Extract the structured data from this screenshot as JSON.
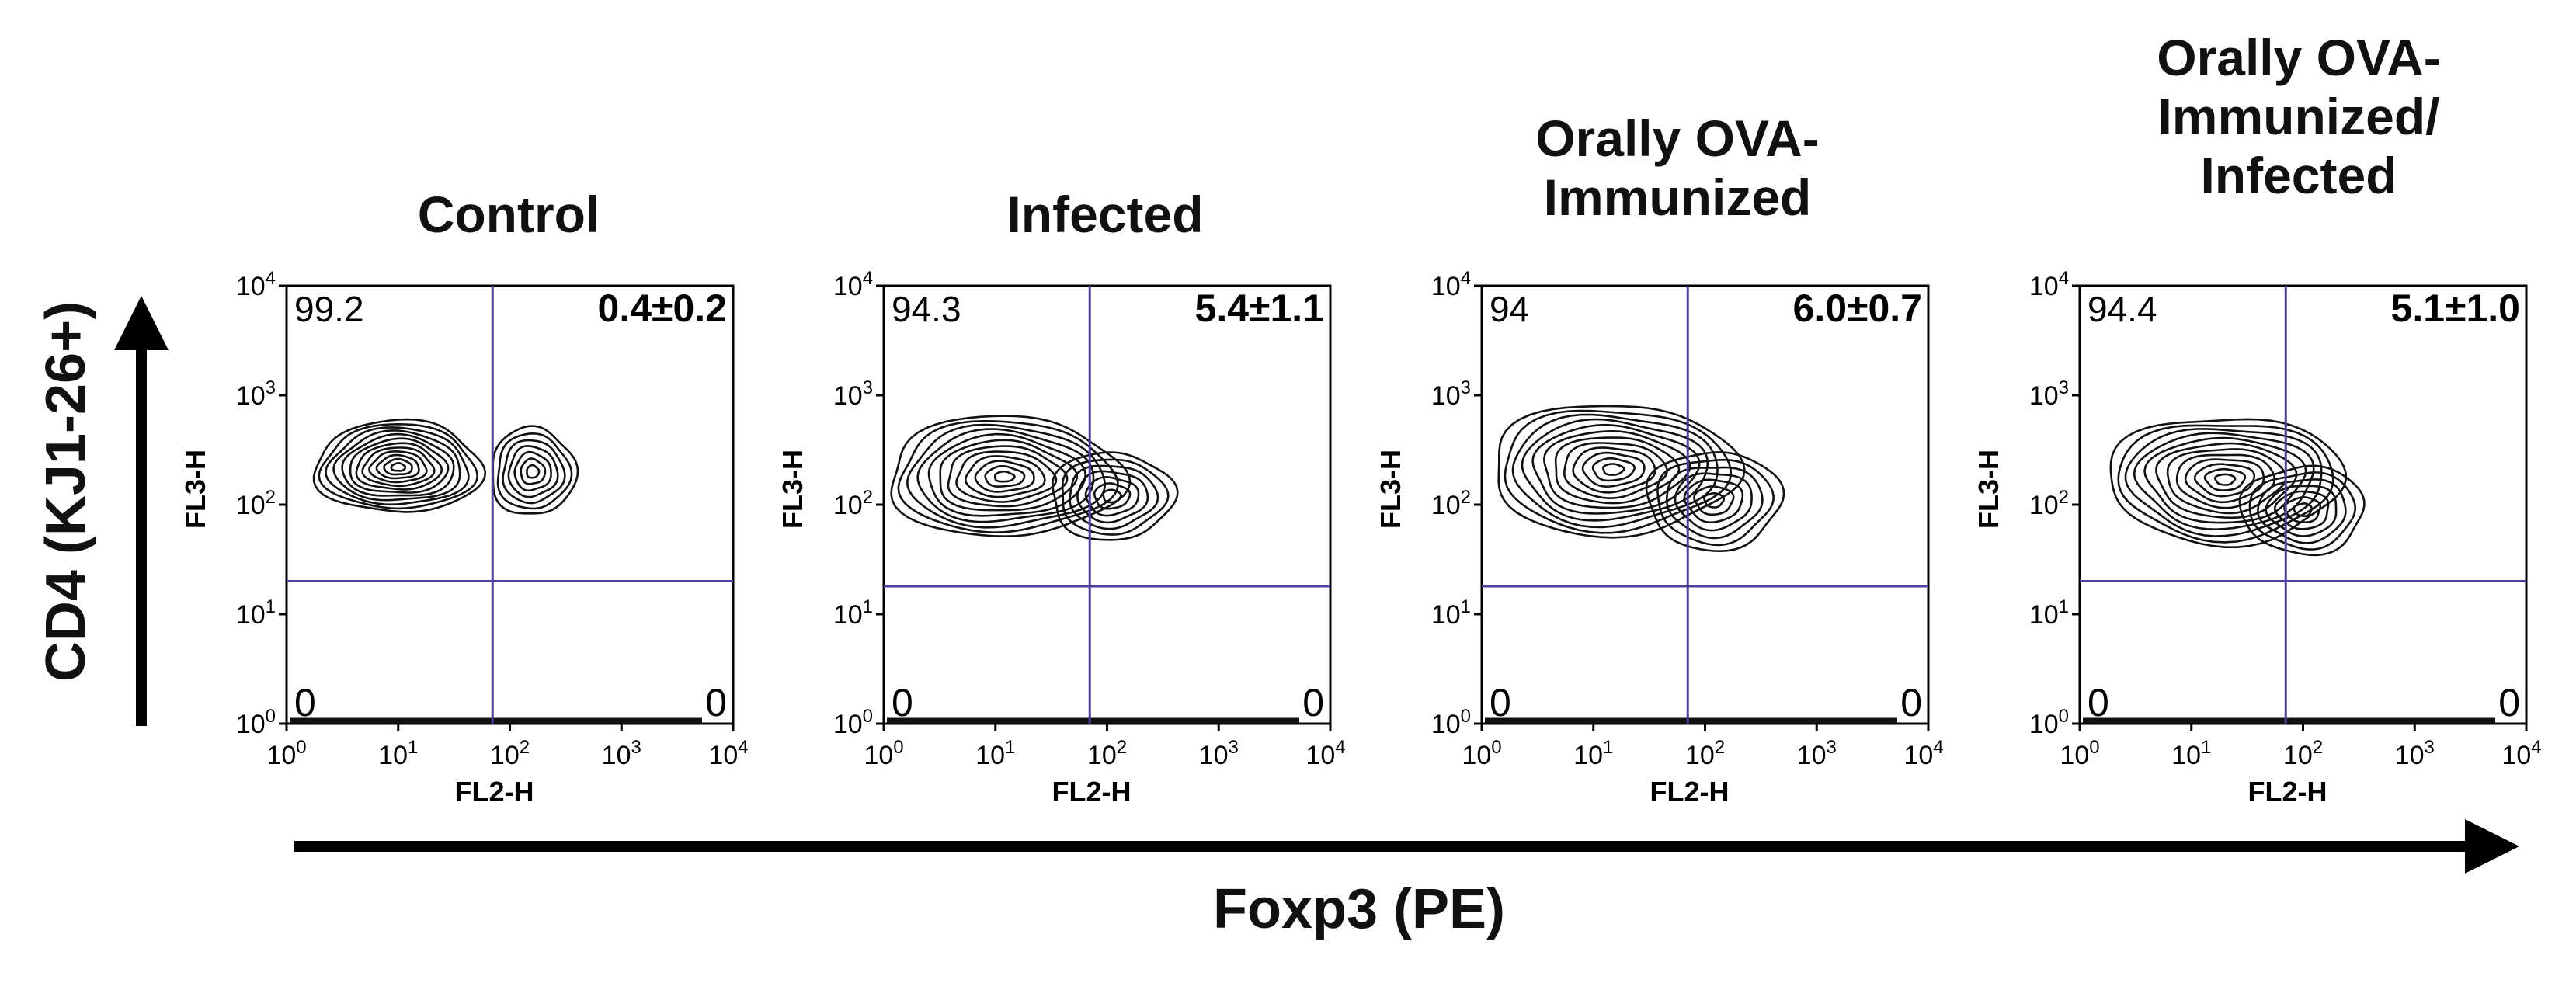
{
  "figure": {
    "y_axis_label": "CD4 (KJ1-26+)",
    "x_axis_label": "Foxp3 (PE)"
  },
  "colors": {
    "gate": "#4b3fa0",
    "contour": "#111111",
    "axis": "#000000"
  },
  "chart_data": [
    {
      "type": "contour",
      "title": "Control",
      "xlabel": "FL2-H",
      "ylabel": "FL3-H",
      "x_scale": "log",
      "y_scale": "log",
      "xlim": [
        1,
        10000
      ],
      "ylim": [
        1,
        10000
      ],
      "x_ticks": [
        "10^0",
        "10^1",
        "10^2",
        "10^3",
        "10^4"
      ],
      "y_ticks": [
        "10^0",
        "10^1",
        "10^2",
        "10^3",
        "10^4"
      ],
      "gate": {
        "x": 70,
        "y": 20
      },
      "quadrants": {
        "upper_left": "99.2",
        "upper_right": "0.4±0.2",
        "lower_left": "0",
        "lower_right": "0"
      },
      "populations": [
        {
          "x": 10,
          "y": 220,
          "spread_x": 0.75,
          "spread_y": 0.42
        },
        {
          "x": 160,
          "y": 200,
          "spread_x": 0.38,
          "spread_y": 0.4
        }
      ]
    },
    {
      "type": "contour",
      "title": "Infected",
      "xlabel": "FL2-H",
      "ylabel": "FL3-H",
      "x_scale": "log",
      "y_scale": "log",
      "xlim": [
        1,
        10000
      ],
      "ylim": [
        1,
        10000
      ],
      "x_ticks": [
        "10^0",
        "10^1",
        "10^2",
        "10^3",
        "10^4"
      ],
      "y_ticks": [
        "10^0",
        "10^1",
        "10^2",
        "10^3",
        "10^4"
      ],
      "gate": {
        "x": 70,
        "y": 18
      },
      "quadrants": {
        "upper_left": "94.3",
        "upper_right": "5.4±1.1",
        "lower_left": "0",
        "lower_right": "0"
      },
      "populations": [
        {
          "x": 12,
          "y": 180,
          "spread_x": 1.05,
          "spread_y": 0.55
        },
        {
          "x": 110,
          "y": 120,
          "spread_x": 0.55,
          "spread_y": 0.4
        }
      ]
    },
    {
      "type": "contour",
      "title": "Orally OVA-Immunized",
      "xlabel": "FL2-H",
      "ylabel": "FL3-H",
      "x_scale": "log",
      "y_scale": "log",
      "xlim": [
        1,
        10000
      ],
      "ylim": [
        1,
        10000
      ],
      "x_ticks": [
        "10^0",
        "10^1",
        "10^2",
        "10^3",
        "10^4"
      ],
      "y_ticks": [
        "10^0",
        "10^1",
        "10^2",
        "10^3",
        "10^4"
      ],
      "gate": {
        "x": 70,
        "y": 18
      },
      "quadrants": {
        "upper_left": "94",
        "upper_right": "6.0±0.7",
        "lower_left": "0",
        "lower_right": "0"
      },
      "populations": [
        {
          "x": 15,
          "y": 210,
          "spread_x": 1.1,
          "spread_y": 0.6
        },
        {
          "x": 120,
          "y": 110,
          "spread_x": 0.6,
          "spread_y": 0.45
        }
      ]
    },
    {
      "type": "contour",
      "title": "Orally OVA-Immunized/ Infected",
      "xlabel": "FL2-H",
      "ylabel": "FL3-H",
      "x_scale": "log",
      "y_scale": "log",
      "xlim": [
        1,
        10000
      ],
      "ylim": [
        1,
        10000
      ],
      "x_ticks": [
        "10^0",
        "10^1",
        "10^2",
        "10^3",
        "10^4"
      ],
      "y_ticks": [
        "10^0",
        "10^1",
        "10^2",
        "10^3",
        "10^4"
      ],
      "gate": {
        "x": 70,
        "y": 20
      },
      "quadrants": {
        "upper_left": "94.4",
        "upper_right": "5.1±1.0",
        "lower_left": "0",
        "lower_right": "0"
      },
      "populations": [
        {
          "x": 20,
          "y": 170,
          "spread_x": 1.05,
          "spread_y": 0.58
        },
        {
          "x": 100,
          "y": 90,
          "spread_x": 0.55,
          "spread_y": 0.4
        }
      ]
    }
  ]
}
